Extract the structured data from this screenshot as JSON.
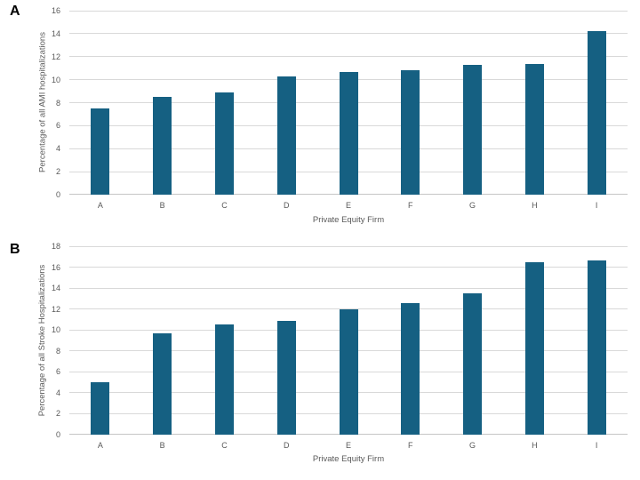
{
  "figure": {
    "background": "#FFFFFF"
  },
  "colors": {
    "bar": "#156082",
    "gridline": "#D9D9D9",
    "axis_line": "#C6C6C6",
    "tick_text": "#595959",
    "panel_label_text": "#000000"
  },
  "chart_data": [
    {
      "type": "bar",
      "panel_label": "A",
      "title": "",
      "xlabel": "Private Equity Firm",
      "ylabel": "Percentage of all AMI hospitalizations",
      "categories": [
        "A",
        "B",
        "C",
        "D",
        "E",
        "F",
        "G",
        "H",
        "I"
      ],
      "values": [
        7.5,
        8.5,
        8.9,
        10.3,
        10.65,
        10.8,
        11.3,
        11.35,
        14.2
      ],
      "ylim": [
        0,
        16
      ],
      "ytick_step": 2,
      "grid": true,
      "legend": null
    },
    {
      "type": "bar",
      "panel_label": "B",
      "title": "",
      "xlabel": "Private Equity Firm",
      "ylabel": "Percentage of all Stroke Hospitalizations",
      "categories": [
        "A",
        "B",
        "C",
        "D",
        "E",
        "F",
        "G",
        "H",
        "I"
      ],
      "values": [
        5.0,
        9.7,
        10.5,
        10.9,
        12.0,
        12.6,
        13.5,
        16.5,
        16.6
      ],
      "ylim": [
        0,
        18
      ],
      "ytick_step": 2,
      "grid": true,
      "legend": null
    }
  ]
}
